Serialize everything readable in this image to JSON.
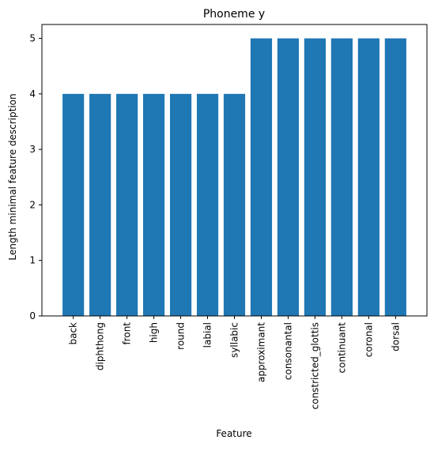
{
  "chart_data": {
    "type": "bar",
    "title": "Phoneme y",
    "xlabel": "Feature",
    "ylabel": "Length minimal feature description",
    "categories": [
      "back",
      "diphthong",
      "front",
      "high",
      "round",
      "labial",
      "syllabic",
      "approximant",
      "consonantal",
      "constricted_glottis",
      "continuant",
      "coronal",
      "dorsal"
    ],
    "values": [
      4,
      4,
      4,
      4,
      4,
      4,
      4,
      5,
      5,
      5,
      5,
      5,
      5
    ],
    "ylim": [
      0,
      5.25
    ],
    "yticks": [
      0,
      1,
      2,
      3,
      4,
      5
    ],
    "grid": false,
    "colors": {
      "bar": "#1f77b4",
      "axis": "#000000"
    }
  }
}
